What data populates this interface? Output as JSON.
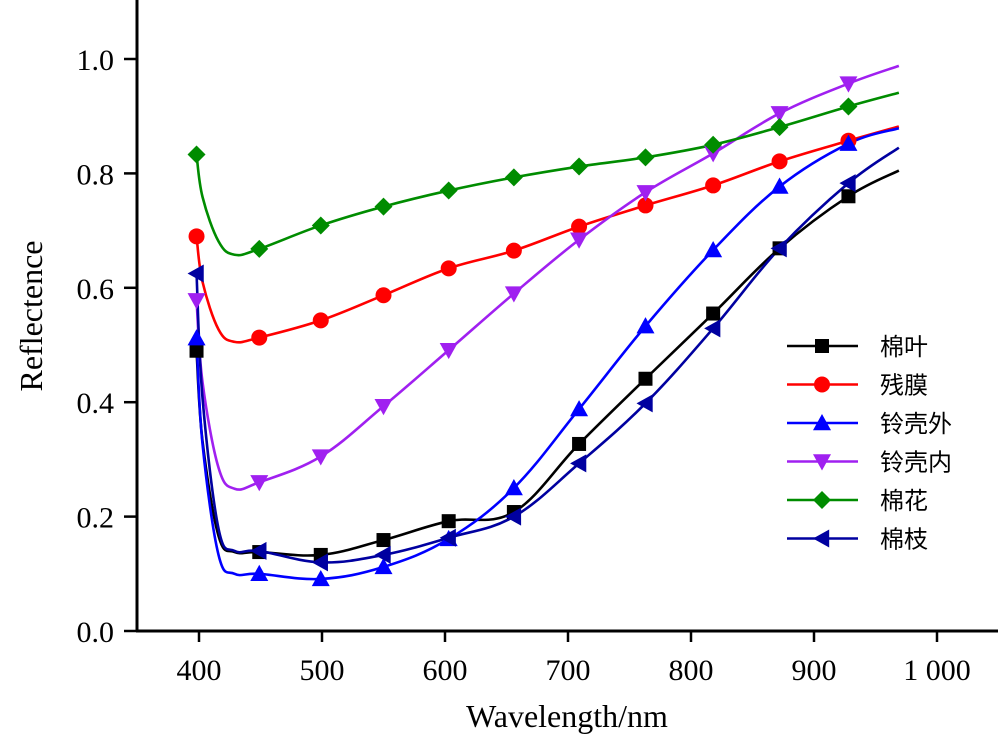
{
  "chart_data": {
    "type": "line",
    "title": "",
    "xlabel": "Wavelength/nm",
    "ylabel": "Reflectence",
    "xlim": [
      350,
      1050
    ],
    "ylim": [
      0.0,
      1.1
    ],
    "x_ticks": [
      400,
      500,
      600,
      700,
      800,
      900,
      1000
    ],
    "x_tick_labels": [
      "400",
      "500",
      "600",
      "700",
      "800",
      "900",
      "1 000"
    ],
    "y_ticks": [
      0.0,
      0.2,
      0.4,
      0.6,
      0.8,
      1.0
    ],
    "y_tick_labels": [
      "0.0",
      "0.2",
      "0.4",
      "0.6",
      "0.8",
      "1.0"
    ],
    "grid": false,
    "legend_position": "right",
    "x": [
      398,
      449,
      499,
      550,
      603,
      656,
      709,
      763,
      818,
      872,
      928
    ],
    "curve_end_x": 969,
    "series": [
      {
        "name": "棉叶",
        "color": "#000000",
        "marker": "square",
        "values": [
          0.49,
          0.138,
          0.133,
          0.159,
          0.192,
          0.208,
          0.327,
          0.441,
          0.555,
          0.669,
          0.76
        ],
        "end_value": 0.805
      },
      {
        "name": "残膜",
        "color": "#ff0000",
        "marker": "circle",
        "values": [
          0.69,
          0.513,
          0.543,
          0.587,
          0.634,
          0.665,
          0.707,
          0.744,
          0.779,
          0.821,
          0.857
        ],
        "end_value": 0.882
      },
      {
        "name": "铃壳外",
        "color": "#0000ff",
        "marker": "triangle-up",
        "values": [
          0.512,
          0.1,
          0.091,
          0.112,
          0.161,
          0.25,
          0.388,
          0.533,
          0.666,
          0.777,
          0.852
        ],
        "end_value": 0.879
      },
      {
        "name": "铃壳内",
        "color": "#a020f0",
        "marker": "triangle-down",
        "values": [
          0.578,
          0.26,
          0.305,
          0.393,
          0.491,
          0.59,
          0.684,
          0.767,
          0.835,
          0.905,
          0.957
        ],
        "end_value": 0.988
      },
      {
        "name": "棉花",
        "color": "#008c00",
        "marker": "diamond",
        "values": [
          0.833,
          0.668,
          0.709,
          0.742,
          0.77,
          0.793,
          0.812,
          0.828,
          0.85,
          0.881,
          0.917
        ],
        "end_value": 0.941
      },
      {
        "name": "棉枝",
        "color": "#0000a0",
        "marker": "triangle-left",
        "values": [
          0.625,
          0.14,
          0.12,
          0.133,
          0.163,
          0.2,
          0.293,
          0.398,
          0.529,
          0.669,
          0.783
        ],
        "end_value": 0.845
      }
    ]
  }
}
